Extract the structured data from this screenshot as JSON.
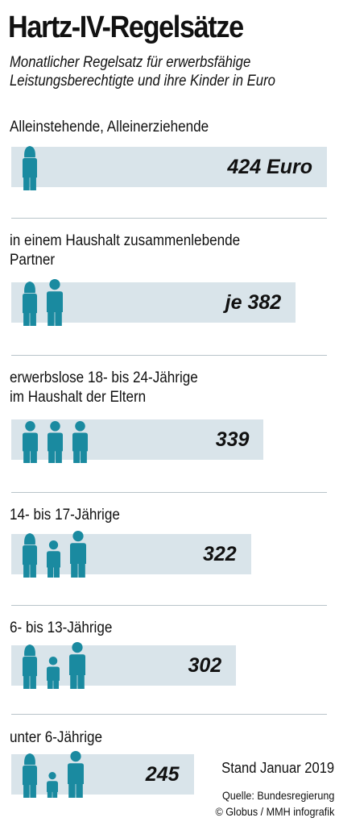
{
  "chart_data": {
    "type": "bar",
    "orientation": "horizontal",
    "title": "Hartz-IV-Regelsätze",
    "subtitle_lines": [
      "Monatlicher Regelsatz für erwerbsfähige",
      "Leistungsberechtigte und ihre Kinder in Euro"
    ],
    "categories": [
      [
        "Alleinstehende, Alleinerziehende"
      ],
      [
        "in einem Haushalt zusammenlebende",
        "Partner"
      ],
      [
        "erwerbslose 18- bis 24-Jährige",
        "im Haushalt der Eltern"
      ],
      [
        "14- bis 17-Jährige"
      ],
      [
        "6- bis 13-Jährige"
      ],
      [
        "unter 6-Jährige"
      ]
    ],
    "values": [
      424,
      382,
      339,
      322,
      302,
      245
    ],
    "value_labels": [
      "424 Euro",
      "je 382",
      "339",
      "322",
      "302",
      "245"
    ],
    "bar_color": "#d9e4ea",
    "icon_color": "#1a8aa0",
    "icons": [
      [
        "adult-female"
      ],
      [
        "adult-female",
        "adult-male"
      ],
      [
        "youth",
        "youth",
        "youth"
      ],
      [
        "adult-female",
        "teen",
        "adult-male"
      ],
      [
        "adult-female",
        "child",
        "adult-male"
      ],
      [
        "adult-female",
        "small-child",
        "adult-male"
      ]
    ]
  },
  "footer": {
    "stand": "Stand Januar 2019",
    "source_lines": [
      "Quelle: Bundesregierung",
      "© Globus / MMH infografik"
    ]
  }
}
